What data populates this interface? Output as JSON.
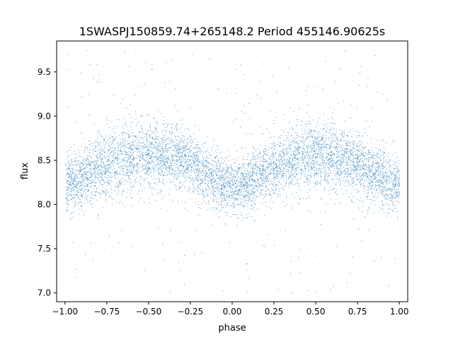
{
  "chart_data": {
    "type": "scatter",
    "title": "1SWASPJ150859.74+265148.2 Period 455146.90625s",
    "xlabel": "phase",
    "ylabel": "flux",
    "xlim": [
      -1.05,
      1.05
    ],
    "ylim": [
      6.9,
      9.85
    ],
    "xticks": [
      -1.0,
      -0.75,
      -0.5,
      -0.25,
      0.0,
      0.25,
      0.5,
      0.75,
      1.0
    ],
    "xtick_labels": [
      "−1.00",
      "−0.75",
      "−0.50",
      "−0.25",
      "0.00",
      "0.25",
      "0.50",
      "0.75",
      "1.00"
    ],
    "yticks": [
      7.0,
      7.5,
      8.0,
      8.5,
      9.0,
      9.5
    ],
    "ytick_labels": [
      "7.0",
      "7.5",
      "8.0",
      "8.5",
      "9.0",
      "9.5"
    ],
    "grid": false,
    "marker_color": "#1f77b4",
    "series": [
      {
        "x": [
          -1.0,
          -0.9,
          -0.8,
          -0.7,
          -0.6,
          -0.5,
          -0.4,
          -0.3,
          -0.2,
          -0.1,
          0.0,
          0.1,
          0.2,
          0.3,
          0.4,
          0.5,
          0.6,
          0.7,
          0.8,
          0.9,
          1.0
        ],
        "y": [
          8.22,
          8.3,
          8.42,
          8.5,
          8.55,
          8.57,
          8.56,
          8.52,
          8.42,
          8.28,
          8.2,
          8.25,
          8.38,
          8.48,
          8.54,
          8.56,
          8.55,
          8.5,
          8.42,
          8.3,
          8.22
        ],
        "scatter": [
          0.16,
          0.17,
          0.18,
          0.19,
          0.19,
          0.19,
          0.19,
          0.18,
          0.17,
          0.16,
          0.16,
          0.16,
          0.17,
          0.18,
          0.19,
          0.19,
          0.19,
          0.19,
          0.18,
          0.17,
          0.16
        ]
      }
    ]
  }
}
